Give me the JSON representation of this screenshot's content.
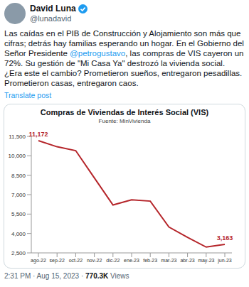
{
  "tweet": {
    "name": "David Luna",
    "handle": "@lunadavid",
    "text": "Las caídas en el PIB de Construcción y Alojamiento son más que cifras; detrás hay familias esperando un hogar. En el Gobierno del Señor Presidente @petrogustavo, las compras de VIS cayeron un 72%. Su gestión de \"Mi Casa Ya\" destrozó la vivienda social. ¿Era este el cambio? Prometieron sueños, entregaron pesadillas. Prometieron casas, entregaron caos.",
    "mention": "@petrogustavo",
    "translate": "Translate post",
    "time": "2:31 PM",
    "date": "Aug 15, 2023",
    "views_count": "770.3K",
    "views_label": "Views",
    "separator": "·"
  },
  "chart_data": {
    "type": "line",
    "title": "Compras de Viviendas de Interés Social (VIS)",
    "subtitle": "Fuente: MinVivienda",
    "categories": [
      "ago-22",
      "sep-22",
      "oct-22",
      "nov-22",
      "dic-22",
      "ene-23",
      "feb-23",
      "mar-23",
      "abr-23",
      "may-23",
      "jun-23"
    ],
    "values": [
      11172,
      10700,
      10400,
      8300,
      6200,
      6600,
      6500,
      4500,
      3700,
      2950,
      3163
    ],
    "value_labels": [
      "11,172",
      null,
      null,
      null,
      null,
      null,
      null,
      null,
      null,
      null,
      "3,163"
    ],
    "data_labels": true,
    "color": "#b5252a",
    "ylim": [
      2500,
      11500
    ],
    "yticks": [
      {
        "value": 2500,
        "label": "2,500"
      },
      {
        "value": 4000,
        "label": "4,000"
      },
      {
        "value": 5500,
        "label": "5,500"
      },
      {
        "value": 7000,
        "label": "7,000"
      },
      {
        "value": 8500,
        "label": "8,500"
      },
      {
        "value": 10000,
        "label": "10,000"
      },
      {
        "value": 11500,
        "label": "11,500"
      }
    ],
    "grid": false
  }
}
